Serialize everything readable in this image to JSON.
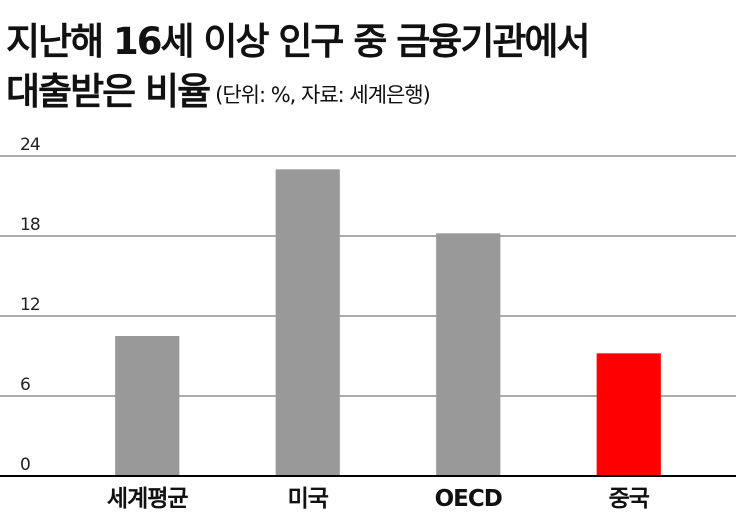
{
  "chart_data": {
    "type": "bar",
    "title": [
      "지난해 16세 이상 인구 중 금융기관에서",
      "대출받은 비율"
    ],
    "subtitle": "(단위: %, 자료: 세계은행)",
    "categories": [
      "세계평균",
      "미국",
      "OECD",
      "중국"
    ],
    "values": [
      10.5,
      23,
      18.2,
      9.2
    ],
    "colors": [
      "#999999",
      "#999999",
      "#999999",
      "#ff0000"
    ],
    "ylim": [
      0,
      24
    ],
    "yticks": [
      0,
      6,
      12,
      18,
      24
    ],
    "grid": true
  }
}
